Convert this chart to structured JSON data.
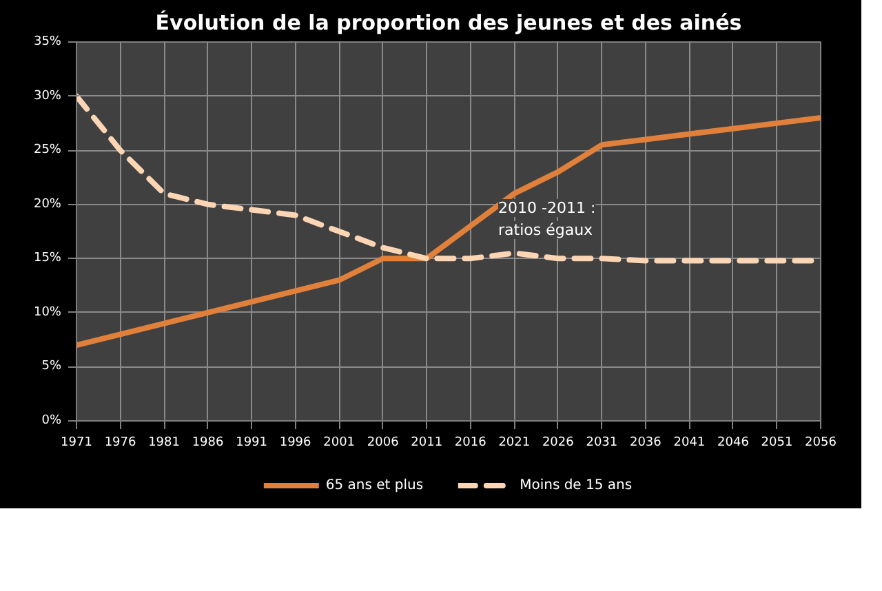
{
  "chart_data": {
    "type": "line",
    "title": "Évolution de la proportion des jeunes et des ainés",
    "x": [
      1971,
      1976,
      1981,
      1986,
      1991,
      1996,
      2001,
      2006,
      2011,
      2016,
      2021,
      2026,
      2031,
      2036,
      2041,
      2046,
      2051,
      2056
    ],
    "series": [
      {
        "name": "65 ans et plus",
        "color": "#e0803a",
        "line_style": "solid",
        "values": [
          7,
          8,
          9,
          10,
          11,
          12,
          13,
          15,
          15,
          18,
          21,
          23,
          25.5,
          26,
          26.5,
          27,
          27.5,
          28
        ]
      },
      {
        "name": "Moins de 15 ans",
        "color": "#fcd5b4",
        "line_style": "dashed",
        "values": [
          30,
          25,
          21,
          20,
          19.5,
          19,
          17.5,
          16,
          15,
          15,
          15.5,
          15,
          15,
          14.8,
          14.8,
          14.8,
          14.8,
          14.8
        ]
      }
    ],
    "xlim": [
      1971,
      2056
    ],
    "xticks": [
      1971,
      1976,
      1981,
      1986,
      1991,
      1996,
      2001,
      2006,
      2011,
      2016,
      2021,
      2026,
      2031,
      2036,
      2041,
      2046,
      2051,
      2056
    ],
    "ylim": [
      0,
      35
    ],
    "yticks": [
      {
        "value": 0,
        "label": "0%"
      },
      {
        "value": 5,
        "label": "5%"
      },
      {
        "value": 10,
        "label": "10%"
      },
      {
        "value": 15,
        "label": "15%"
      },
      {
        "value": 20,
        "label": "20%"
      },
      {
        "value": 25,
        "label": "25%"
      },
      {
        "value": 30,
        "label": "30%"
      },
      {
        "value": 35,
        "label": "35%"
      }
    ],
    "grid": true,
    "legend": "bottom",
    "marker": "none",
    "annotations": [
      "2010 -2011 :\nratios égaux"
    ]
  }
}
